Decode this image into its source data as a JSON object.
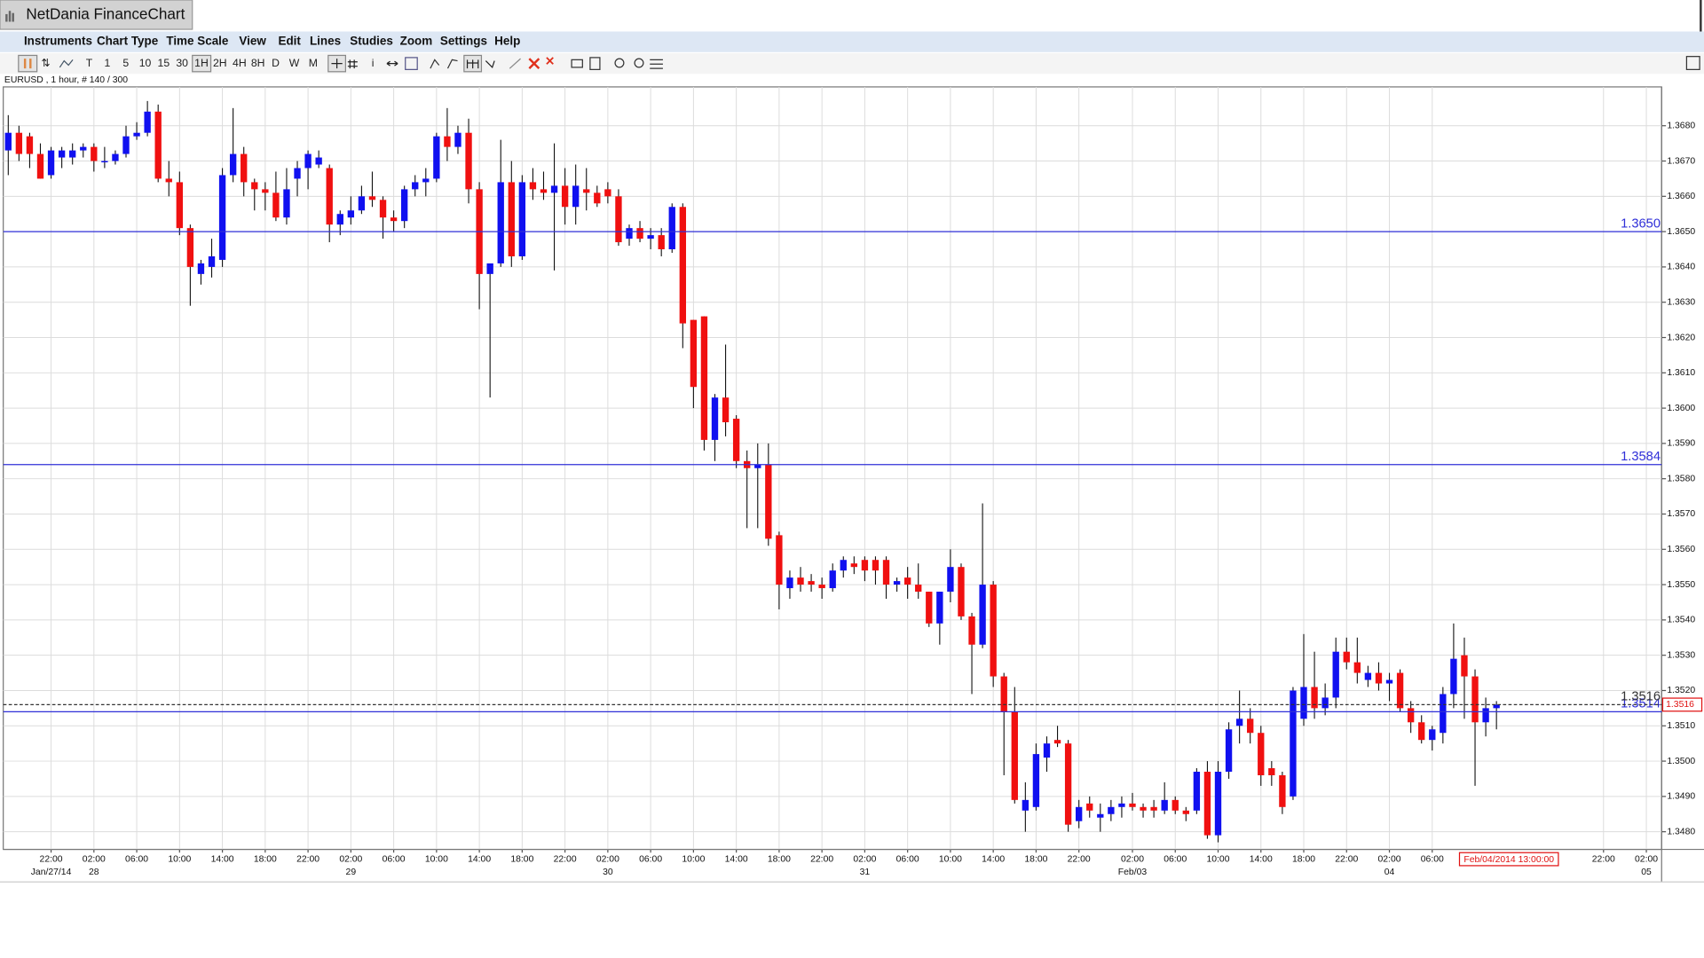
{
  "window": {
    "title": "NetDania FinanceChart"
  },
  "menu": [
    "Instruments",
    "Chart Type",
    "Time Scale",
    "View",
    "Edit",
    "Lines",
    "Studies",
    "Zoom",
    "Settings",
    "Help"
  ],
  "toolbar": [
    "T",
    "1",
    "5",
    "10",
    "15",
    "30",
    "1H",
    "2H",
    "4H",
    "8H",
    "D",
    "W",
    "M",
    "i"
  ],
  "chart_data": {
    "type": "candlestick",
    "title": "EURUSD , 1 hour, # 140 / 300",
    "up_color": "#1010f0",
    "down_color": "#f01010",
    "line_color": "#3030d8",
    "grid": true,
    "categories": [
      null,
      null,
      null,
      null,
      "22:00",
      null,
      null,
      null,
      "02:00",
      null,
      null,
      null,
      "06:00",
      null,
      null,
      null,
      "10:00",
      null,
      null,
      null,
      "14:00",
      null,
      null,
      null,
      "18:00",
      null,
      null,
      null,
      "22:00",
      null,
      null,
      null,
      "02:00",
      null,
      null,
      null,
      "06:00",
      null,
      null,
      null,
      "10:00",
      null,
      null,
      null,
      "14:00",
      null,
      null,
      null,
      "18:00",
      null,
      null,
      null,
      "22:00",
      null,
      null,
      null,
      "02:00",
      null,
      null,
      null,
      "06:00",
      null,
      null,
      null,
      "10:00",
      null,
      null,
      null,
      "14:00",
      null,
      null,
      null,
      "18:00",
      null,
      null,
      null,
      "22:00",
      null,
      null,
      null,
      "02:00",
      null,
      null,
      null,
      "06:00",
      null,
      null,
      null,
      "10:00",
      null,
      null,
      null,
      "14:00",
      null,
      null,
      null,
      "18:00",
      null,
      null,
      null,
      "22:00",
      null,
      null,
      null,
      null,
      "02:00",
      null,
      null,
      null,
      "06:00",
      null,
      null,
      null,
      "10:00",
      null,
      null,
      null,
      "14:00",
      null,
      null,
      null,
      "18:00",
      null,
      null,
      null,
      "22:00",
      null,
      null,
      null,
      "02:00",
      null,
      null,
      null,
      "06:00",
      null,
      null,
      null,
      null,
      null,
      null,
      null,
      null,
      null,
      null,
      null,
      null,
      null,
      null,
      null,
      "22:00",
      null,
      null,
      null,
      "02:00"
    ],
    "category_dates": [
      null,
      null,
      null,
      null,
      "Jan/27/14",
      null,
      null,
      null,
      "28",
      null,
      null,
      null,
      null,
      null,
      null,
      null,
      null,
      null,
      null,
      null,
      null,
      null,
      null,
      null,
      null,
      null,
      null,
      null,
      null,
      null,
      null,
      null,
      "29",
      null,
      null,
      null,
      null,
      null,
      null,
      null,
      null,
      null,
      null,
      null,
      null,
      null,
      null,
      null,
      null,
      null,
      null,
      null,
      null,
      null,
      null,
      null,
      "30",
      null,
      null,
      null,
      null,
      null,
      null,
      null,
      null,
      null,
      null,
      null,
      null,
      null,
      null,
      null,
      null,
      null,
      null,
      null,
      null,
      null,
      null,
      null,
      "31",
      null,
      null,
      null,
      null,
      null,
      null,
      null,
      null,
      null,
      null,
      null,
      null,
      null,
      null,
      null,
      null,
      null,
      null,
      null,
      null,
      null,
      null,
      null,
      null,
      "Feb/03",
      null,
      null,
      null,
      null,
      null,
      null,
      null,
      null,
      null,
      null,
      null,
      null,
      null,
      null,
      null,
      null,
      null,
      null,
      null,
      null,
      null,
      null,
      null,
      "04",
      null,
      null,
      null,
      null,
      null,
      null,
      null,
      null,
      null,
      null,
      null,
      null,
      null,
      null,
      null,
      null,
      null,
      null,
      null,
      null,
      null,
      null,
      null,
      "05"
    ],
    "open": [
      1.3673,
      1.3678,
      1.3677,
      1.3672,
      1.3666,
      1.3671,
      1.3671,
      1.3673,
      1.3674,
      1.367,
      1.367,
      1.3672,
      1.3677,
      1.3678,
      1.3684,
      1.3665,
      1.3664,
      1.3651,
      1.3638,
      1.364,
      1.3642,
      1.3666,
      1.3672,
      1.3664,
      1.3662,
      1.3661,
      1.3654,
      1.3665,
      1.3668,
      1.3669,
      1.3668,
      1.3652,
      1.3654,
      1.3656,
      1.366,
      1.3659,
      1.3654,
      1.3653,
      1.3662,
      1.3664,
      1.3665,
      1.3677,
      1.3674,
      1.3678,
      1.3662,
      1.3638,
      1.3641,
      1.3664,
      1.3643,
      1.3664,
      1.3662,
      1.3661,
      1.3663,
      1.3657,
      1.3662,
      1.3661,
      1.3662,
      1.366,
      1.3648,
      1.3651,
      1.3648,
      1.3649,
      1.3645,
      1.3657,
      1.3625,
      1.3626,
      1.3591,
      1.3603,
      1.3597,
      1.3585,
      1.3583,
      1.3584,
      1.3564,
      1.3549,
      1.3552,
      1.3551,
      1.355,
      1.3549,
      1.3554,
      1.3556,
      1.3557,
      1.3557,
      1.3557,
      1.355,
      1.3552,
      1.355,
      1.3548,
      1.3539,
      1.3548,
      1.3555,
      1.3541,
      1.3533,
      1.355,
      1.3524,
      1.3514,
      1.3486,
      1.3487,
      1.3501,
      1.3506,
      1.3505,
      1.3483,
      1.3488,
      1.3484,
      1.3485,
      1.3487,
      1.3488,
      1.3487,
      1.3487,
      1.3486,
      1.3489,
      1.3486,
      1.3486,
      1.3497,
      1.3479,
      1.3497,
      1.351,
      1.3512,
      1.3508,
      1.3498,
      1.3496,
      1.349,
      1.3512,
      1.3521,
      1.3515,
      1.3518,
      1.3531,
      1.3528,
      1.3523,
      1.3525,
      1.3522,
      1.3525,
      1.3515,
      1.3511,
      1.3506,
      1.3508,
      1.3519,
      1.353,
      1.3524,
      1.3511,
      1.3515,
      null,
      null,
      null,
      null,
      null,
      null,
      null,
      null,
      null,
      null,
      null,
      null,
      null,
      null
    ],
    "high": [
      1.3683,
      1.368,
      1.3678,
      1.3675,
      1.3674,
      1.3674,
      1.3675,
      1.3675,
      1.3675,
      1.3674,
      1.3673,
      1.368,
      1.3681,
      1.3687,
      1.3686,
      1.367,
      1.3667,
      1.3652,
      1.3642,
      1.3648,
      1.3668,
      1.3685,
      1.3674,
      1.3665,
      1.3664,
      1.3667,
      1.3668,
      1.367,
      1.3673,
      1.3673,
      1.3669,
      1.3656,
      1.366,
      1.3663,
      1.3667,
      1.366,
      1.3656,
      1.3663,
      1.3666,
      1.3668,
      1.3678,
      1.3685,
      1.368,
      1.3682,
      1.3664,
      1.364,
      1.3676,
      1.367,
      1.3666,
      1.3668,
      1.3667,
      1.3675,
      1.3668,
      1.3669,
      1.3668,
      1.3663,
      1.3664,
      1.3662,
      1.3652,
      1.3653,
      1.3651,
      1.3651,
      1.3658,
      1.3658,
      1.3625,
      1.3626,
      1.3604,
      1.3618,
      1.3598,
      1.3588,
      1.359,
      1.359,
      1.3565,
      1.3554,
      1.3555,
      1.3553,
      1.3552,
      1.3556,
      1.3558,
      1.3558,
      1.3558,
      1.3558,
      1.3558,
      1.3552,
      1.3555,
      1.3556,
      1.3548,
      1.3548,
      1.356,
      1.3556,
      1.3542,
      1.3573,
      1.3551,
      1.3525,
      1.3521,
      1.3494,
      1.3505,
      1.3507,
      1.351,
      1.3506,
      1.3489,
      1.349,
      1.3488,
      1.3489,
      1.349,
      1.3491,
      1.3488,
      1.3489,
      1.3494,
      1.349,
      1.3487,
      1.3498,
      1.35,
      1.35,
      1.3511,
      1.352,
      1.3515,
      1.351,
      1.35,
      1.3497,
      1.3521,
      1.3536,
      1.3531,
      1.3522,
      1.3535,
      1.3535,
      1.3535,
      1.3527,
      1.3528,
      1.3525,
      1.3526,
      1.3517,
      1.3513,
      1.351,
      1.3521,
      1.3539,
      1.3535,
      1.3526,
      1.3518,
      1.3517,
      null,
      null,
      null,
      null,
      null,
      null,
      null,
      null,
      null,
      null,
      null,
      null,
      null,
      null
    ],
    "low": [
      1.3666,
      1.367,
      1.3668,
      1.3665,
      1.3665,
      1.3668,
      1.3669,
      1.3671,
      1.3667,
      1.3668,
      1.3669,
      1.3671,
      1.3676,
      1.3677,
      1.3664,
      1.366,
      1.3649,
      1.3629,
      1.3635,
      1.3637,
      1.364,
      1.3664,
      1.366,
      1.3656,
      1.3656,
      1.3653,
      1.3652,
      1.366,
      1.3662,
      1.3668,
      1.3647,
      1.3649,
      1.3652,
      1.3655,
      1.3657,
      1.3648,
      1.365,
      1.3651,
      1.366,
      1.366,
      1.3664,
      1.367,
      1.3672,
      1.3658,
      1.3628,
      1.3603,
      1.364,
      1.364,
      1.3642,
      1.3659,
      1.3659,
      1.3639,
      1.3652,
      1.3652,
      1.3656,
      1.3657,
      1.3658,
      1.3646,
      1.3646,
      1.3647,
      1.3645,
      1.3643,
      1.3644,
      1.3617,
      1.36,
      1.3588,
      1.3585,
      1.3592,
      1.3583,
      1.3566,
      1.3566,
      1.3561,
      1.3543,
      1.3546,
      1.3548,
      1.3548,
      1.3546,
      1.3548,
      1.3552,
      1.3553,
      1.3551,
      1.355,
      1.3546,
      1.3548,
      1.3546,
      1.3546,
      1.3538,
      1.3533,
      1.3545,
      1.354,
      1.3519,
      1.3532,
      1.3521,
      1.3496,
      1.3488,
      1.348,
      1.3486,
      1.3497,
      1.3504,
      1.348,
      1.3481,
      1.3484,
      1.348,
      1.3483,
      1.3484,
      1.3486,
      1.3484,
      1.3484,
      1.3485,
      1.3485,
      1.3483,
      1.3485,
      1.3478,
      1.3477,
      1.3495,
      1.3505,
      1.3505,
      1.3493,
      1.3493,
      1.3485,
      1.3489,
      1.351,
      1.3512,
      1.3513,
      1.3515,
      1.3526,
      1.3522,
      1.3521,
      1.352,
      1.3517,
      1.3514,
      1.3508,
      1.3505,
      1.3503,
      1.3505,
      1.3515,
      1.3512,
      1.3493,
      1.3507,
      1.3509,
      null,
      null,
      null,
      null,
      null,
      null,
      null,
      null,
      null,
      null,
      null,
      null,
      null,
      null
    ],
    "close": [
      1.3678,
      1.3672,
      1.3672,
      1.3665,
      1.3673,
      1.3673,
      1.3673,
      1.3674,
      1.367,
      1.367,
      1.3672,
      1.3677,
      1.3678,
      1.3684,
      1.3665,
      1.3664,
      1.3651,
      1.364,
      1.3641,
      1.3643,
      1.3666,
      1.3672,
      1.3664,
      1.3662,
      1.3661,
      1.3654,
      1.3662,
      1.3668,
      1.3672,
      1.3671,
      1.3652,
      1.3655,
      1.3656,
      1.366,
      1.3659,
      1.3654,
      1.3653,
      1.3662,
      1.3664,
      1.3665,
      1.3677,
      1.3674,
      1.3678,
      1.3662,
      1.3638,
      1.3641,
      1.3664,
      1.3643,
      1.3664,
      1.3662,
      1.3661,
      1.3663,
      1.3657,
      1.3663,
      1.3661,
      1.3658,
      1.366,
      1.3647,
      1.3651,
      1.3648,
      1.3649,
      1.3645,
      1.3657,
      1.3624,
      1.3606,
      1.3591,
      1.3603,
      1.3596,
      1.3585,
      1.3583,
      1.3584,
      1.3563,
      1.355,
      1.3552,
      1.355,
      1.355,
      1.3549,
      1.3554,
      1.3557,
      1.3555,
      1.3554,
      1.3554,
      1.355,
      1.3551,
      1.355,
      1.3548,
      1.3539,
      1.3548,
      1.3555,
      1.3541,
      1.3533,
      1.355,
      1.3524,
      1.3514,
      1.3489,
      1.3489,
      1.3502,
      1.3505,
      1.3505,
      1.3482,
      1.3487,
      1.3486,
      1.3485,
      1.3487,
      1.3488,
      1.3487,
      1.3486,
      1.3486,
      1.3489,
      1.3486,
      1.3485,
      1.3497,
      1.3479,
      1.3497,
      1.3509,
      1.3512,
      1.3508,
      1.3496,
      1.3496,
      1.3487,
      1.352,
      1.3521,
      1.3515,
      1.3518,
      1.3531,
      1.3528,
      1.3525,
      1.3525,
      1.3522,
      1.3523,
      1.3515,
      1.3511,
      1.3506,
      1.3509,
      1.3519,
      1.3529,
      1.3524,
      1.3511,
      1.3515,
      1.3516,
      null,
      null,
      null,
      null,
      null,
      null,
      null,
      null,
      null,
      null,
      null,
      null,
      null,
      null
    ],
    "ylim": [
      1.3475,
      1.3691
    ],
    "yticks": [
      {
        "value": 1.348,
        "label": "1.3480"
      },
      {
        "value": 1.349,
        "label": "1.3490"
      },
      {
        "value": 1.35,
        "label": "1.3500"
      },
      {
        "value": 1.351,
        "label": "1.3510"
      },
      {
        "value": 1.352,
        "label": "1.3520"
      },
      {
        "value": 1.353,
        "label": "1.3530"
      },
      {
        "value": 1.354,
        "label": "1.3540"
      },
      {
        "value": 1.355,
        "label": "1.3550"
      },
      {
        "value": 1.356,
        "label": "1.3560"
      },
      {
        "value": 1.357,
        "label": "1.3570"
      },
      {
        "value": 1.358,
        "label": "1.3580"
      },
      {
        "value": 1.359,
        "label": "1.3590"
      },
      {
        "value": 1.36,
        "label": "1.3600"
      },
      {
        "value": 1.361,
        "label": "1.3610"
      },
      {
        "value": 1.362,
        "label": "1.3620"
      },
      {
        "value": 1.363,
        "label": "1.3630"
      },
      {
        "value": 1.364,
        "label": "1.3640"
      },
      {
        "value": 1.365,
        "label": "1.3650"
      },
      {
        "value": 1.366,
        "label": "1.3660"
      },
      {
        "value": 1.367,
        "label": "1.3670"
      },
      {
        "value": 1.368,
        "label": "1.3680"
      }
    ],
    "lines": [
      {
        "value": 1.365,
        "label": "1.3650"
      },
      {
        "value": 1.3584,
        "label": "1.3584"
      },
      {
        "value": 1.3514,
        "label": "1.3514"
      }
    ],
    "current": {
      "value": 1.3516,
      "label": "1.3516"
    },
    "cursor_time": "Feb/04/2014 13:00:00"
  }
}
